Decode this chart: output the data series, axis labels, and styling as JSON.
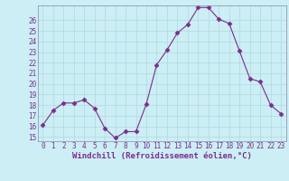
{
  "x": [
    0,
    1,
    2,
    3,
    4,
    5,
    6,
    7,
    8,
    9,
    10,
    11,
    12,
    13,
    14,
    15,
    16,
    17,
    18,
    19,
    20,
    21,
    22,
    23
  ],
  "y": [
    16.1,
    17.5,
    18.2,
    18.2,
    18.5,
    17.7,
    15.8,
    14.9,
    15.5,
    15.5,
    18.1,
    21.8,
    23.2,
    24.8,
    25.6,
    27.2,
    27.2,
    26.1,
    25.7,
    23.1,
    20.5,
    20.2,
    18.0,
    17.2
  ],
  "line_color": "#7b2d8b",
  "marker": "D",
  "marker_size": 2.5,
  "background_color": "#cceef5",
  "grid_color": "#b0d8e0",
  "tick_color": "#7b2d8b",
  "label_color": "#7b2d8b",
  "xlabel": "Windchill (Refroidissement éolien,°C)",
  "ylim": [
    14.6,
    27.4
  ],
  "xlim": [
    -0.5,
    23.5
  ],
  "yticks": [
    15,
    16,
    17,
    18,
    19,
    20,
    21,
    22,
    23,
    24,
    25,
    26
  ],
  "xticks": [
    0,
    1,
    2,
    3,
    4,
    5,
    6,
    7,
    8,
    9,
    10,
    11,
    12,
    13,
    14,
    15,
    16,
    17,
    18,
    19,
    20,
    21,
    22,
    23
  ],
  "tick_fontsize": 5.5,
  "xlabel_fontsize": 6.5
}
